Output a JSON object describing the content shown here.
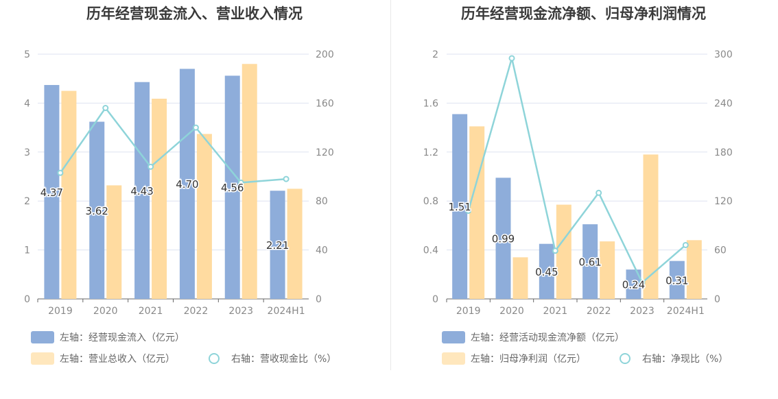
{
  "colors": {
    "bar_left": "#8eadda",
    "bar_second": "#ffdba0",
    "line": "#8ed4d9",
    "grid": "#dde2f0",
    "axis_text": "#888888",
    "label_text": "#333333"
  },
  "chart_data": [
    {
      "type": "bar",
      "title": "历年经营现金流入、营业收入情况",
      "categories": [
        "2019",
        "2020",
        "2021",
        "2022",
        "2023",
        "2024H1"
      ],
      "left_axis": {
        "range": [
          0,
          5
        ],
        "ticks": [
          "0",
          "1",
          "2",
          "3",
          "4",
          "5"
        ]
      },
      "right_axis": {
        "range": [
          0,
          200
        ],
        "ticks": [
          "0",
          "40",
          "80",
          "120",
          "160",
          "200"
        ]
      },
      "series": [
        {
          "name": "左轴：经营现金流入（亿元）",
          "type": "bar",
          "axis": "left",
          "values": [
            4.37,
            3.62,
            4.43,
            4.7,
            4.56,
            2.21
          ],
          "labels": [
            "4.37",
            "3.62",
            "4.43",
            "4.70",
            "4.56",
            "2.21"
          ]
        },
        {
          "name": "左轴：营业总收入（亿元）",
          "type": "bar",
          "axis": "left",
          "values": [
            4.25,
            2.32,
            4.09,
            3.37,
            4.8,
            2.25
          ]
        },
        {
          "name": "右轴：营收现金比（%）",
          "type": "line",
          "axis": "right",
          "values": [
            103,
            156,
            108,
            140,
            95,
            98
          ]
        }
      ],
      "grid": true,
      "legend_position": "bottom-left"
    },
    {
      "type": "bar",
      "title": "历年经营现金流净额、归母净利润情况",
      "categories": [
        "2019",
        "2020",
        "2021",
        "2022",
        "2023",
        "2024H1"
      ],
      "left_axis": {
        "range": [
          0,
          2
        ],
        "ticks": [
          "0",
          "0.4",
          "0.8",
          "1.2",
          "1.6",
          "2"
        ]
      },
      "right_axis": {
        "range": [
          0,
          300
        ],
        "ticks": [
          "0",
          "60",
          "120",
          "180",
          "240",
          "300"
        ]
      },
      "series": [
        {
          "name": "左轴：经营活动现金流净额（亿元）",
          "type": "bar",
          "axis": "left",
          "values": [
            1.51,
            0.99,
            0.45,
            0.61,
            0.24,
            0.31
          ],
          "labels": [
            "1.51",
            "0.99",
            "0.45",
            "0.61",
            "0.24",
            "0.31"
          ]
        },
        {
          "name": "左轴：归母净利润（亿元）",
          "type": "bar",
          "axis": "left",
          "values": [
            1.41,
            0.34,
            0.77,
            0.47,
            1.18,
            0.48
          ]
        },
        {
          "name": "右轴：净现比（%）",
          "type": "line",
          "axis": "right",
          "values": [
            108,
            295,
            59,
            130,
            20,
            66
          ]
        }
      ],
      "grid": true,
      "legend_position": "bottom-left"
    }
  ]
}
